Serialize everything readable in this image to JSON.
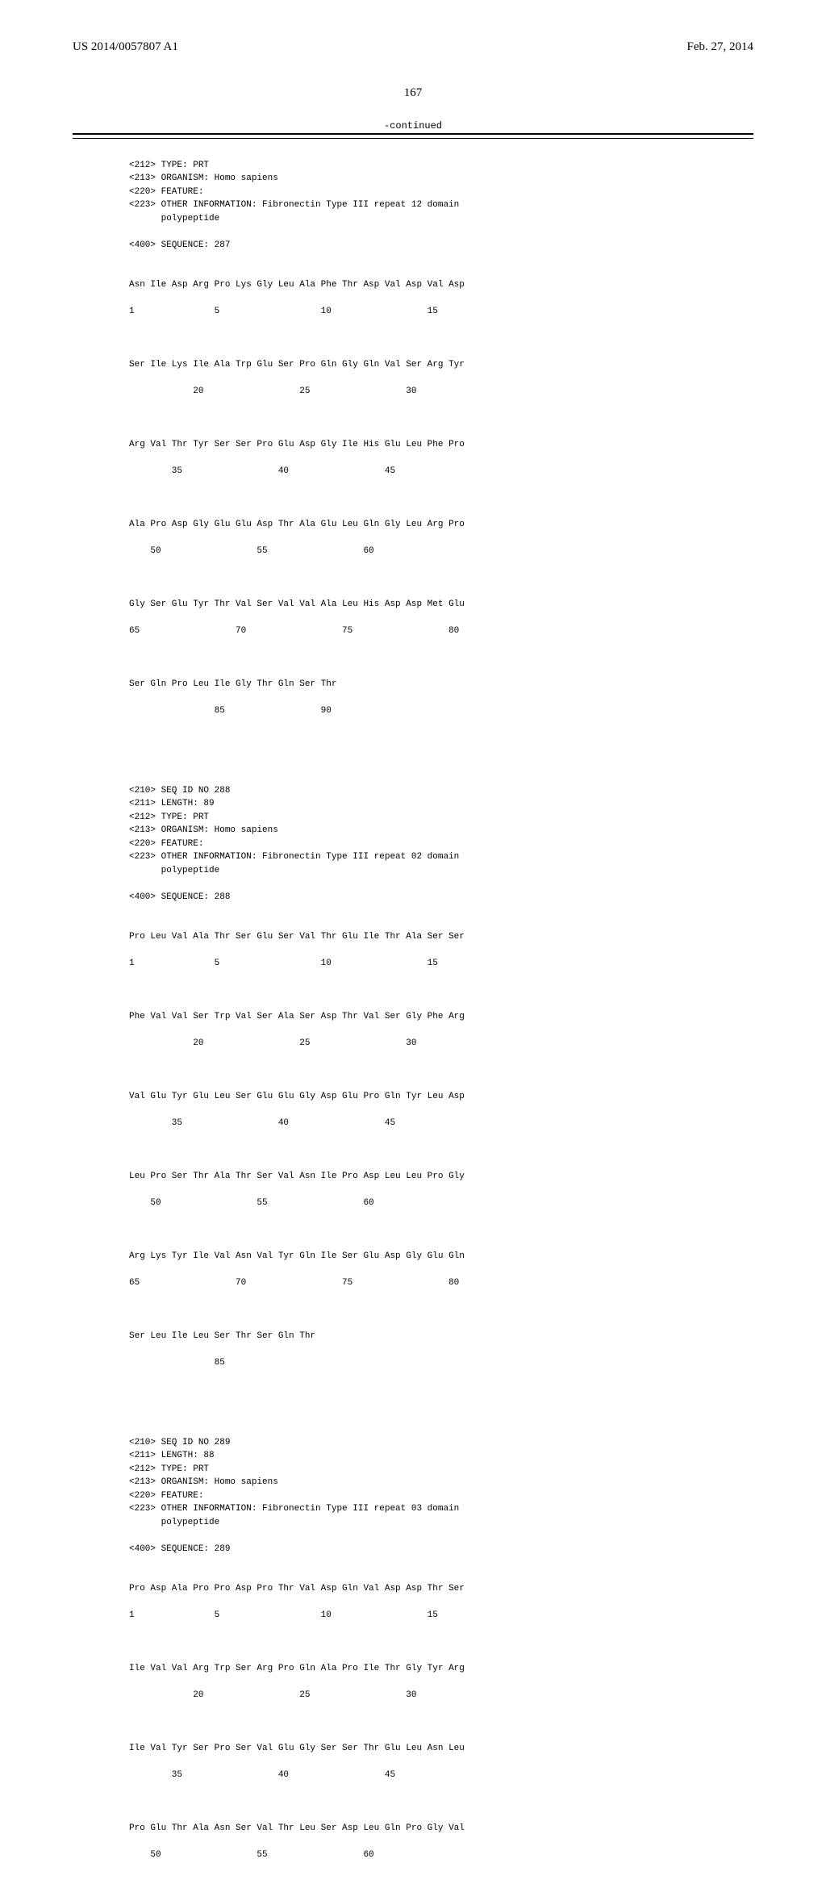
{
  "header": {
    "left": "US 2014/0057807 A1",
    "right": "Feb. 27, 2014"
  },
  "page_number": "167",
  "continued_label": "-continued",
  "meta287": "<212> TYPE: PRT\n<213> ORGANISM: Homo sapiens\n<220> FEATURE:\n<223> OTHER INFORMATION: Fibronectin Type III repeat 12 domain\n      polypeptide\n\n<400> SEQUENCE: 287",
  "seq287_l1": "Asn Ile Asp Arg Pro Lys Gly Leu Ala Phe Thr Asp Val Asp Val Asp",
  "seq287_n1": "1               5                   10                  15",
  "seq287_l2": "Ser Ile Lys Ile Ala Trp Glu Ser Pro Gln Gly Gln Val Ser Arg Tyr",
  "seq287_n2": "            20                  25                  30",
  "seq287_l3": "Arg Val Thr Tyr Ser Ser Pro Glu Asp Gly Ile His Glu Leu Phe Pro",
  "seq287_n3": "        35                  40                  45",
  "seq287_l4": "Ala Pro Asp Gly Glu Glu Asp Thr Ala Glu Leu Gln Gly Leu Arg Pro",
  "seq287_n4": "    50                  55                  60",
  "seq287_l5": "Gly Ser Glu Tyr Thr Val Ser Val Val Ala Leu His Asp Asp Met Glu",
  "seq287_n5": "65                  70                  75                  80",
  "seq287_l6": "Ser Gln Pro Leu Ile Gly Thr Gln Ser Thr",
  "seq287_n6": "                85                  90",
  "meta288": "<210> SEQ ID NO 288\n<211> LENGTH: 89\n<212> TYPE: PRT\n<213> ORGANISM: Homo sapiens\n<220> FEATURE:\n<223> OTHER INFORMATION: Fibronectin Type III repeat 02 domain\n      polypeptide\n\n<400> SEQUENCE: 288",
  "seq288_l1": "Pro Leu Val Ala Thr Ser Glu Ser Val Thr Glu Ile Thr Ala Ser Ser",
  "seq288_n1": "1               5                   10                  15",
  "seq288_l2": "Phe Val Val Ser Trp Val Ser Ala Ser Asp Thr Val Ser Gly Phe Arg",
  "seq288_n2": "            20                  25                  30",
  "seq288_l3": "Val Glu Tyr Glu Leu Ser Glu Glu Gly Asp Glu Pro Gln Tyr Leu Asp",
  "seq288_n3": "        35                  40                  45",
  "seq288_l4": "Leu Pro Ser Thr Ala Thr Ser Val Asn Ile Pro Asp Leu Leu Pro Gly",
  "seq288_n4": "    50                  55                  60",
  "seq288_l5": "Arg Lys Tyr Ile Val Asn Val Tyr Gln Ile Ser Glu Asp Gly Glu Gln",
  "seq288_n5": "65                  70                  75                  80",
  "seq288_l6": "Ser Leu Ile Leu Ser Thr Ser Gln Thr",
  "seq288_n6": "                85",
  "meta289": "<210> SEQ ID NO 289\n<211> LENGTH: 88\n<212> TYPE: PRT\n<213> ORGANISM: Homo sapiens\n<220> FEATURE:\n<223> OTHER INFORMATION: Fibronectin Type III repeat 03 domain\n      polypeptide\n\n<400> SEQUENCE: 289",
  "seq289_l1": "Pro Asp Ala Pro Pro Asp Pro Thr Val Asp Gln Val Asp Asp Thr Ser",
  "seq289_n1": "1               5                   10                  15",
  "seq289_l2": "Ile Val Val Arg Trp Ser Arg Pro Gln Ala Pro Ile Thr Gly Tyr Arg",
  "seq289_n2": "            20                  25                  30",
  "seq289_l3": "Ile Val Tyr Ser Pro Ser Val Glu Gly Ser Ser Thr Glu Leu Asn Leu",
  "seq289_n3": "        35                  40                  45",
  "seq289_l4": "Pro Glu Thr Ala Asn Ser Val Thr Leu Ser Asp Leu Gln Pro Gly Val",
  "seq289_n4": "    50                  55                  60"
}
